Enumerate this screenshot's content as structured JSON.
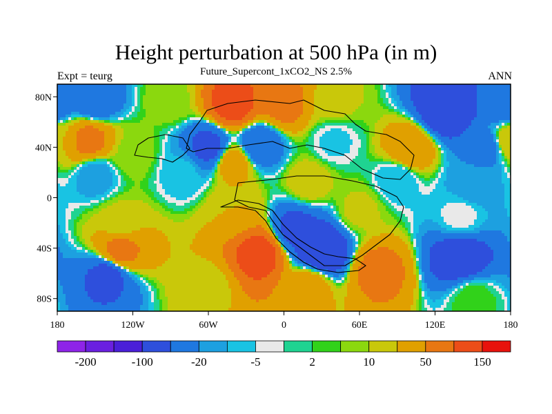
{
  "header": {
    "title": "Height perturbation at 500 hPa (in m)",
    "subtitle": "Future_Supercont_1xCO2_NS 2.5%",
    "left_label": "Expt = teurg",
    "right_label": "ANN"
  },
  "chart_data": {
    "type": "heatmap",
    "projection": "cylindrical-equidistant",
    "xlim": [
      -180,
      180
    ],
    "ylim": [
      -90,
      90
    ],
    "x_ticks": [
      {
        "value": -180,
        "label": "180"
      },
      {
        "value": -120,
        "label": "120W"
      },
      {
        "value": -60,
        "label": "60W"
      },
      {
        "value": 0,
        "label": "0"
      },
      {
        "value": 60,
        "label": "60E"
      },
      {
        "value": 120,
        "label": "120E"
      },
      {
        "value": 180,
        "label": "180"
      }
    ],
    "y_ticks": [
      {
        "value": 80,
        "label": "80N"
      },
      {
        "value": 40,
        "label": "40N"
      },
      {
        "value": 0,
        "label": "0"
      },
      {
        "value": -40,
        "label": "40S"
      },
      {
        "value": -80,
        "label": "80S"
      }
    ],
    "colorbar": {
      "colors": [
        "#8e24e8",
        "#6a20e0",
        "#4a1fd8",
        "#2e4fdc",
        "#1f78e0",
        "#1da0e0",
        "#19c3e3",
        "#e9e9e9",
        "#1fd391",
        "#31d21a",
        "#8bd80e",
        "#c9c80a",
        "#e0a000",
        "#e87712",
        "#ec4d18",
        "#e8120c"
      ],
      "ticks": [
        {
          "index": 1,
          "label": "-200"
        },
        {
          "index": 3,
          "label": "-100"
        },
        {
          "index": 5,
          "label": "-20"
        },
        {
          "index": 7,
          "label": "-5"
        },
        {
          "index": 9,
          "label": "2"
        },
        {
          "index": 11,
          "label": "10"
        },
        {
          "index": 13,
          "label": "50"
        },
        {
          "index": 15,
          "label": "150"
        }
      ]
    },
    "field_centers": [
      {
        "lon": -150,
        "lat": 78,
        "value": -40
      },
      {
        "lon": -90,
        "lat": 78,
        "value": 8
      },
      {
        "lon": -40,
        "lat": 75,
        "value": 120
      },
      {
        "lon": 0,
        "lat": 75,
        "value": 60
      },
      {
        "lon": 40,
        "lat": 75,
        "value": 12
      },
      {
        "lon": 130,
        "lat": 70,
        "value": -90
      },
      {
        "lon": 175,
        "lat": 75,
        "value": -40
      },
      {
        "lon": -155,
        "lat": 45,
        "value": 60
      },
      {
        "lon": -120,
        "lat": 35,
        "value": 8
      },
      {
        "lon": -60,
        "lat": 40,
        "value": -60
      },
      {
        "lon": -20,
        "lat": 42,
        "value": -40
      },
      {
        "lon": 40,
        "lat": 45,
        "value": -6
      },
      {
        "lon": 100,
        "lat": 38,
        "value": 40
      },
      {
        "lon": 160,
        "lat": 40,
        "value": -30
      },
      {
        "lon": 180,
        "lat": 45,
        "value": 20
      },
      {
        "lon": -150,
        "lat": 18,
        "value": -15
      },
      {
        "lon": -80,
        "lat": 20,
        "value": -8
      },
      {
        "lon": -40,
        "lat": 28,
        "value": 30
      },
      {
        "lon": 20,
        "lat": 12,
        "value": 15
      },
      {
        "lon": 90,
        "lat": 15,
        "value": -10
      },
      {
        "lon": 150,
        "lat": 10,
        "value": -15
      },
      {
        "lon": -130,
        "lat": -20,
        "value": 12
      },
      {
        "lon": -40,
        "lat": -10,
        "value": 20
      },
      {
        "lon": 10,
        "lat": -25,
        "value": -60
      },
      {
        "lon": 60,
        "lat": -10,
        "value": 12
      },
      {
        "lon": 140,
        "lat": -15,
        "value": -3
      },
      {
        "lon": -130,
        "lat": -42,
        "value": 60
      },
      {
        "lon": -20,
        "lat": -45,
        "value": 120
      },
      {
        "lon": 30,
        "lat": -42,
        "value": -100
      },
      {
        "lon": 75,
        "lat": -58,
        "value": 60
      },
      {
        "lon": 140,
        "lat": -48,
        "value": -80
      },
      {
        "lon": -140,
        "lat": -62,
        "value": -60
      },
      {
        "lon": -60,
        "lat": -70,
        "value": 15
      },
      {
        "lon": 20,
        "lat": -70,
        "value": 30
      },
      {
        "lon": 150,
        "lat": -80,
        "value": 5
      }
    ]
  }
}
